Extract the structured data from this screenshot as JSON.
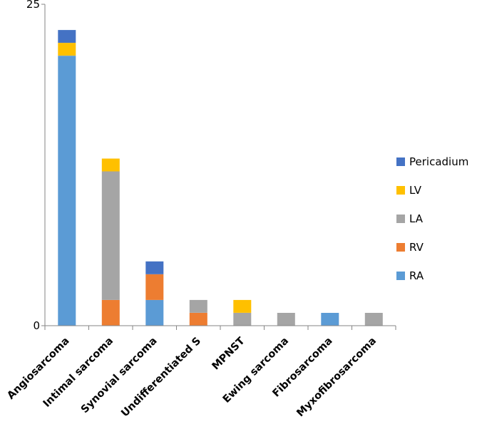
{
  "chart_data": {
    "type": "bar",
    "stacked": true,
    "title": "",
    "xlabel": "",
    "ylabel": "",
    "ylim": [
      0,
      25
    ],
    "y_tick_labels": [
      "0",
      "25"
    ],
    "categories": [
      "Angiosarcoma",
      "Intimal sarcoma",
      "Synovial sarcoma",
      "Undifferentiated S",
      "MPNST",
      "Ewing sarcoma",
      "Fibrosarcoma",
      "Myxofibrosarcoma"
    ],
    "series": [
      {
        "name": "RA",
        "color": "#5B9BD5",
        "values": [
          21,
          0,
          2,
          0,
          0,
          0,
          1,
          0
        ]
      },
      {
        "name": "RV",
        "color": "#ED7D31",
        "values": [
          0,
          2,
          2,
          1,
          0,
          0,
          0,
          0
        ]
      },
      {
        "name": "LA",
        "color": "#A5A5A5",
        "values": [
          0,
          10,
          0,
          1,
          1,
          1,
          0,
          1
        ]
      },
      {
        "name": "LV",
        "color": "#FFC000",
        "values": [
          1,
          1,
          0,
          0,
          1,
          0,
          0,
          0
        ]
      },
      {
        "name": "Pericadium",
        "color": "#4472C4",
        "values": [
          1,
          0,
          1,
          0,
          0,
          0,
          0,
          0
        ]
      }
    ],
    "legend": {
      "position": "right",
      "order": [
        "Pericadium",
        "LV",
        "LA",
        "RV",
        "RA"
      ]
    },
    "grid": false
  }
}
